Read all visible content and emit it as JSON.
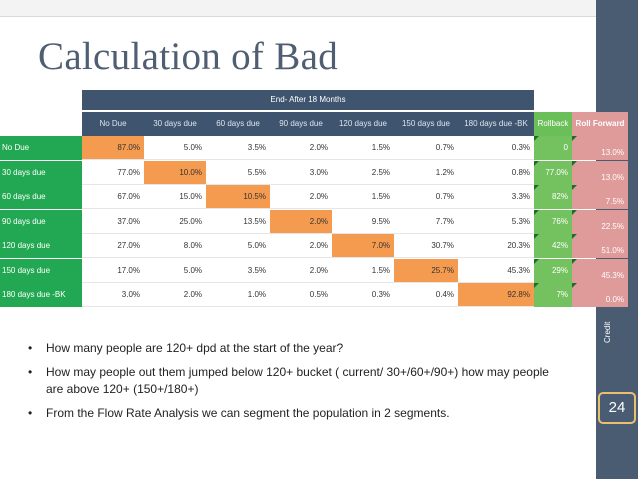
{
  "slide": {
    "title": "Calculation of Bad",
    "side_label": "Credit",
    "page_number": "24"
  },
  "table": {
    "band_label": "End- After 18 Months",
    "columns": [
      "No Due",
      "30 days due",
      "60 days due",
      "90 days due",
      "120 days due",
      "150 days due",
      "180 days due -BK",
      "Rollback",
      "Roll Forward"
    ],
    "rows": [
      {
        "label": "No Due",
        "values": [
          "87.0%",
          "5.0%",
          "3.5%",
          "2.0%",
          "1.5%",
          "0.7%",
          "0.3%"
        ],
        "rollback": "0",
        "rollforward": "13.0%"
      },
      {
        "label": "30 days due",
        "values": [
          "77.0%",
          "10.0%",
          "5.5%",
          "3.0%",
          "2.5%",
          "1.2%",
          "0.8%"
        ],
        "rollback": "77.0%",
        "rollforward": "13.0%"
      },
      {
        "label": "60 days due",
        "values": [
          "67.0%",
          "15.0%",
          "10.5%",
          "2.0%",
          "1.5%",
          "0.7%",
          "3.3%"
        ],
        "rollback": "82%",
        "rollforward": "7.5%"
      },
      {
        "label": "90 days due",
        "values": [
          "37.0%",
          "25.0%",
          "13.5%",
          "2.0%",
          "9.5%",
          "7.7%",
          "5.3%"
        ],
        "rollback": "76%",
        "rollforward": "22.5%"
      },
      {
        "label": "120 days due",
        "values": [
          "27.0%",
          "8.0%",
          "5.0%",
          "2.0%",
          "7.0%",
          "30.7%",
          "20.3%"
        ],
        "rollback": "42%",
        "rollforward": "51.0%"
      },
      {
        "label": "150 days due",
        "values": [
          "17.0%",
          "5.0%",
          "3.5%",
          "2.0%",
          "1.5%",
          "25.7%",
          "45.3%"
        ],
        "rollback": "29%",
        "rollforward": "45.3%"
      },
      {
        "label": "180 days due -BK",
        "values": [
          "3.0%",
          "2.0%",
          "1.0%",
          "0.5%",
          "0.3%",
          "0.4%",
          "92.8%"
        ],
        "rollback": "7%",
        "rollforward": "0.0%"
      }
    ],
    "colors": {
      "diagonal": "#f49b4f",
      "rollback": "#73c25f",
      "rollforward": "#df9a9a",
      "row_label": "#22a852",
      "header": "#3f556f"
    }
  },
  "bullets": [
    "How many people are 120+ dpd at the start of the year?",
    "How may people out them jumped below 120+ bucket ( current/ 30+/60+/90+) how may people are above 120+ (150+/180+)",
    "From the Flow Rate Analysis  we can segment the population in 2 segments."
  ]
}
